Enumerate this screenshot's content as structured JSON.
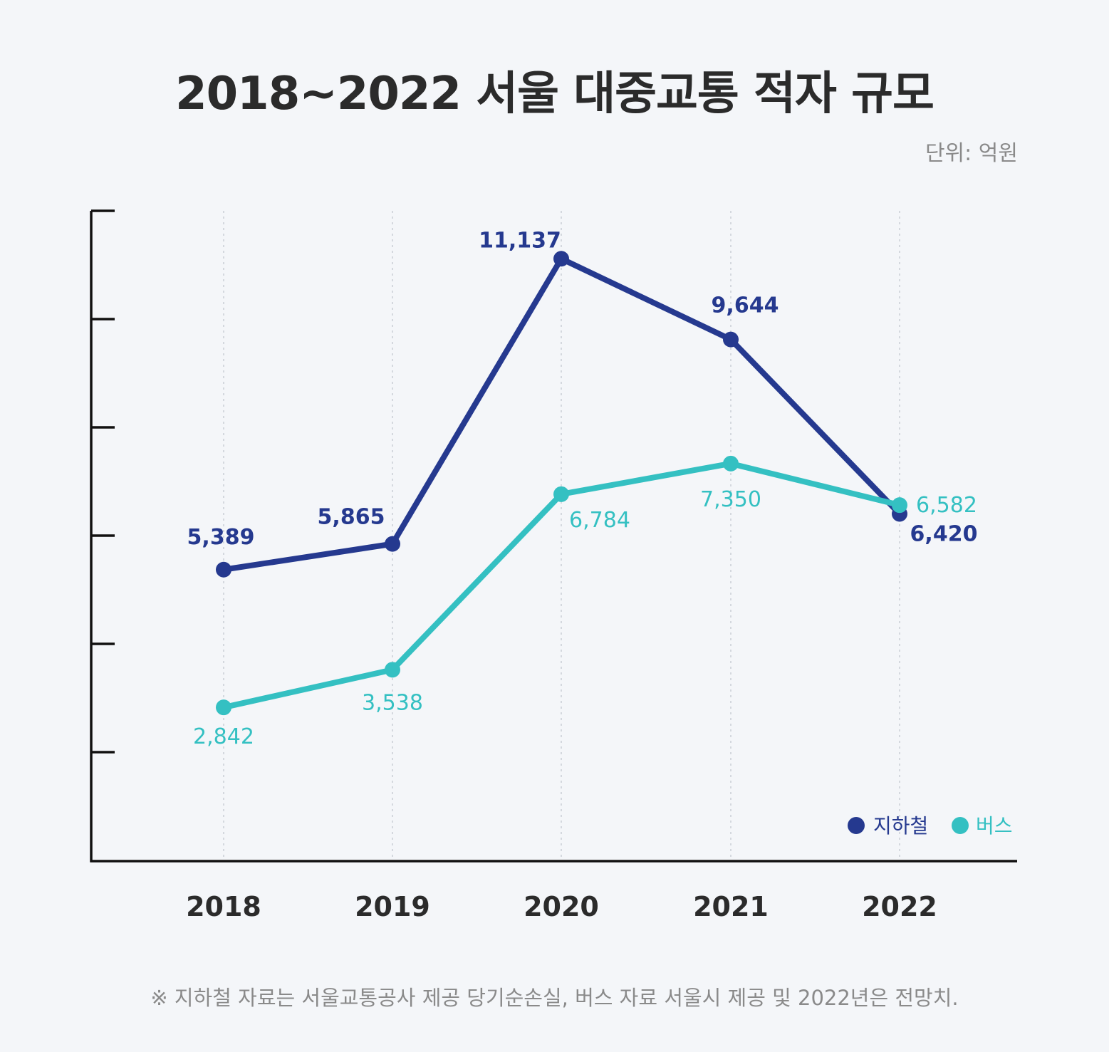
{
  "header": {
    "title": "2018~2022 서울 대중교통 적자 규모",
    "unit": "단위: 억원"
  },
  "footnote": "※ 지하철 자료는 서울교통공사 제공 당기순손실, 버스 자료 서울시 제공 및 2022년은 전망치.",
  "colors": {
    "background": "#f4f6f9",
    "subway": "#25398f",
    "bus": "#34c0c2",
    "axis": "#111111",
    "grid": "#c9ced6"
  },
  "chart_data": {
    "type": "line",
    "title": "2018~2022 서울 대중교통 적자 규모",
    "ylabel": "",
    "xlabel": "",
    "categories": [
      "2018",
      "2019",
      "2020",
      "2021",
      "2022"
    ],
    "ylim": [
      0,
      12000
    ],
    "grid": "vertical dotted",
    "legend_position": "bottom-right",
    "series": [
      {
        "name": "지하철",
        "color": "#25398f",
        "values": [
          5389,
          5865,
          11137,
          9644,
          6420
        ],
        "labels": [
          "5,389",
          "5,865",
          "11,137",
          "9,644",
          "6,420"
        ]
      },
      {
        "name": "버스",
        "color": "#34c0c2",
        "values": [
          2842,
          3538,
          6784,
          7350,
          6582
        ],
        "labels": [
          "2,842",
          "3,538",
          "6,784",
          "7,350",
          "6,582"
        ]
      }
    ]
  }
}
